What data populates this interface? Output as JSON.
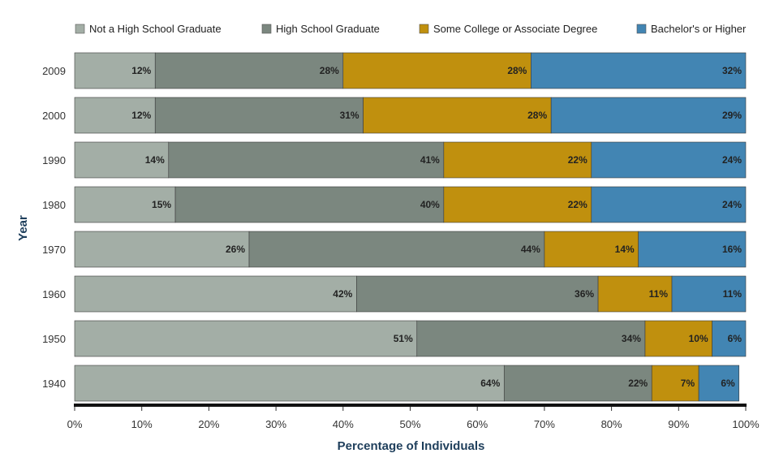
{
  "chart_data": {
    "type": "bar",
    "orientation": "horizontal",
    "stacked": true,
    "xlabel": "Percentage of Individuals",
    "ylabel": "Year",
    "xlim": [
      0,
      100
    ],
    "x_ticks": [
      "0%",
      "10%",
      "20%",
      "30%",
      "40%",
      "50%",
      "60%",
      "70%",
      "80%",
      "90%",
      "100%"
    ],
    "legend_position": "top",
    "grid": false,
    "categories": [
      "2009",
      "2000",
      "1990",
      "1980",
      "1970",
      "1960",
      "1950",
      "1940"
    ],
    "series": [
      {
        "name": "Not a High School Graduate",
        "color": "#a3aea6",
        "values": [
          12,
          12,
          14,
          15,
          26,
          42,
          51,
          64
        ]
      },
      {
        "name": "High School Graduate",
        "color": "#7b877f",
        "values": [
          28,
          31,
          41,
          40,
          44,
          36,
          34,
          22
        ]
      },
      {
        "name": "Some College or Associate Degree",
        "color": "#c0900e",
        "values": [
          28,
          28,
          22,
          22,
          14,
          11,
          10,
          7
        ]
      },
      {
        "name": "Bachelor's or Higher",
        "color": "#4285b3",
        "values": [
          32,
          29,
          24,
          24,
          16,
          11,
          6,
          6
        ]
      }
    ]
  }
}
